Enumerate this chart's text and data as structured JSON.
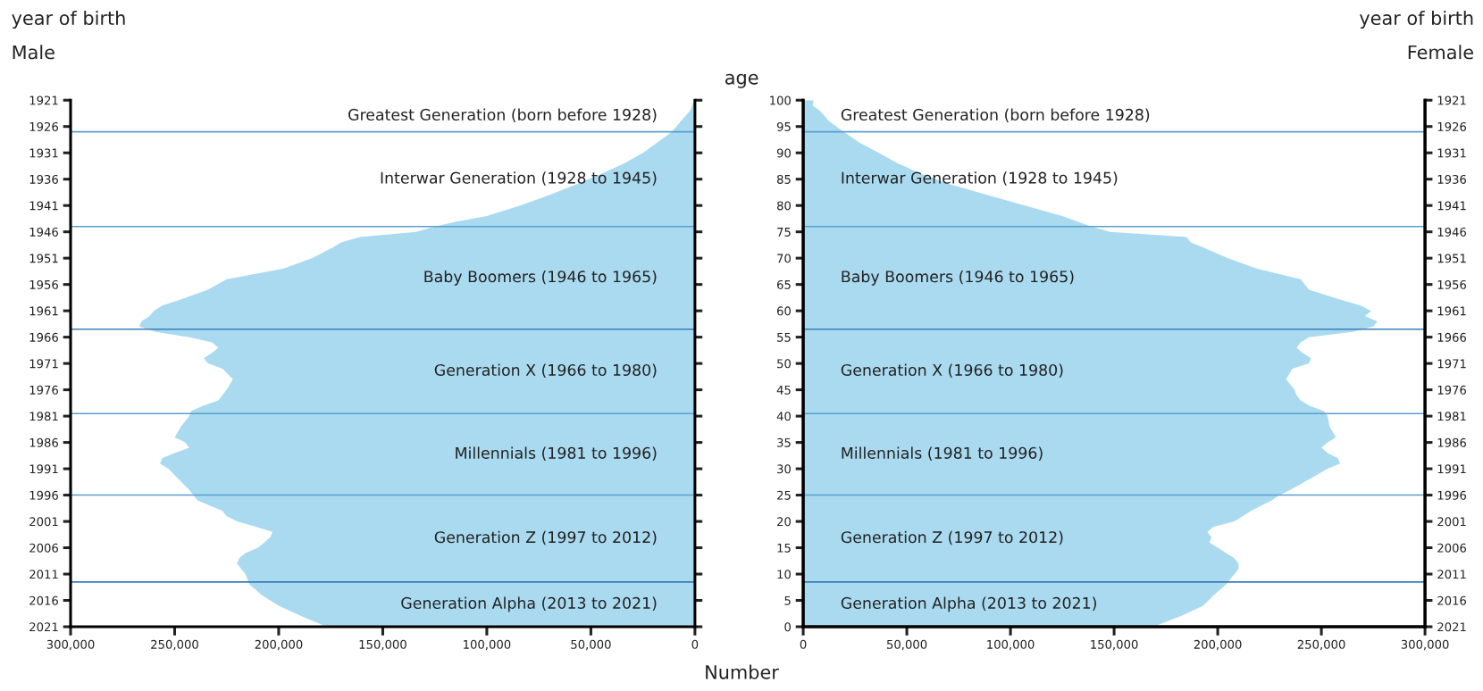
{
  "chart_data": [
    {
      "type": "area",
      "orientation": "horizontal",
      "title": "Male",
      "ylabel": "year of birth",
      "x": [
        2021,
        2019,
        2017,
        2015,
        2013,
        2011,
        2010,
        2009,
        2008,
        2007,
        2006,
        2005,
        2004,
        2003,
        2002,
        2001,
        2000,
        1999,
        1997,
        1996,
        1995,
        1993,
        1991,
        1990,
        1989,
        1988,
        1987,
        1986,
        1985,
        1983,
        1981,
        1980,
        1979,
        1978,
        1977,
        1976,
        1974,
        1972,
        1971,
        1970,
        1969,
        1968,
        1967,
        1966,
        1965,
        1964,
        1963,
        1962,
        1961,
        1960,
        1959,
        1957,
        1955,
        1953,
        1951,
        1949,
        1948,
        1947,
        1946,
        1945,
        1944,
        1943,
        1941,
        1939,
        1937,
        1935,
        1933,
        1931,
        1929,
        1927,
        1925,
        1923,
        1921
      ],
      "series": [
        {
          "color": "#a9daf0",
          "values": [
            177000,
            189000,
            200000,
            208000,
            214000,
            216000,
            218000,
            220000,
            219000,
            216000,
            210000,
            207000,
            204000,
            203000,
            211000,
            220000,
            225000,
            227000,
            239000,
            241000,
            243000,
            248000,
            253000,
            257000,
            256000,
            250000,
            243000,
            245000,
            250000,
            247000,
            243000,
            242000,
            236000,
            229000,
            227000,
            225000,
            222000,
            227000,
            234000,
            236000,
            232000,
            229000,
            232000,
            243000,
            259000,
            267000,
            266000,
            262000,
            260000,
            256000,
            248000,
            234000,
            225000,
            198000,
            184000,
            174000,
            170000,
            161000,
            134000,
            125000,
            114000,
            100000,
            84000,
            70000,
            57000,
            45000,
            34000,
            25000,
            18000,
            11000,
            6800,
            2300,
            500
          ]
        }
      ],
      "xlim": [
        300000,
        0
      ],
      "xticks": [
        {
          "value": 300000,
          "label": "300,000"
        },
        {
          "value": 250000,
          "label": "250,000"
        },
        {
          "value": 200000,
          "label": "200,000"
        },
        {
          "value": 150000,
          "label": "150,000"
        },
        {
          "value": 100000,
          "label": "100,000"
        },
        {
          "value": 50000,
          "label": "50,000"
        },
        0
      ],
      "ylim": [
        2021,
        1921
      ],
      "yticks": [
        1921,
        1926,
        1931,
        1936,
        1941,
        1946,
        1951,
        1956,
        1961,
        1966,
        1971,
        1976,
        1981,
        1986,
        1991,
        1996,
        2001,
        2006,
        2011,
        2016,
        2021
      ],
      "ref_lines": [
        {
          "axis": "y",
          "value": 1927,
          "color": "#5a9fd0"
        },
        {
          "axis": "y",
          "value": 1945,
          "color": "#5a9fd0"
        },
        {
          "axis": "y",
          "value": 1964.5,
          "color": "#3a7fb8"
        },
        {
          "axis": "y",
          "value": 1980.5,
          "color": "#5a9fd0"
        },
        {
          "axis": "y",
          "value": 1996,
          "color": "#5a9fd0"
        },
        {
          "axis": "y",
          "value": 2012.5,
          "color": "#3a7fb8"
        }
      ],
      "annotations": [
        "Greatest Generation (born before 1928)",
        "Interwar Generation (1928 to 1945)",
        "Baby Boomers (1946 to 1965)",
        "Generation X (1966 to 1980)",
        "Millennials (1981 to 1996)",
        "Generation Z (1997 to 2012)",
        "Generation Alpha (2013 to 2021)"
      ]
    },
    {
      "type": "area",
      "orientation": "horizontal",
      "title": "Female",
      "y2label": "year of birth",
      "ylabel": "age",
      "xlabel": "Number",
      "x": [
        0,
        2,
        4,
        6,
        8,
        10,
        11,
        12,
        13,
        14,
        15,
        16,
        17,
        18,
        19,
        20,
        21,
        22,
        24,
        25,
        26,
        28,
        30,
        31,
        32,
        33,
        34,
        35,
        36,
        38,
        40,
        41,
        42,
        43,
        44,
        45,
        47,
        49,
        50,
        51,
        52,
        53,
        54,
        55,
        56,
        57,
        58,
        59,
        60,
        61,
        62,
        64,
        66,
        68,
        70,
        72,
        73,
        74,
        75,
        76,
        78,
        80,
        82,
        84,
        86,
        88,
        90,
        92,
        94,
        96,
        98,
        99,
        100
      ],
      "series": [
        {
          "color": "#a9daf0",
          "values": [
            169000,
            182000,
            193000,
            198000,
            204000,
            208000,
            210000,
            210000,
            208000,
            204000,
            200000,
            196000,
            197000,
            195000,
            198000,
            208000,
            212000,
            216000,
            226000,
            230000,
            235000,
            244000,
            253000,
            259000,
            258000,
            253000,
            250000,
            253000,
            257000,
            254000,
            253000,
            251000,
            244000,
            240000,
            238000,
            237000,
            233000,
            236000,
            244000,
            245000,
            241000,
            238000,
            240000,
            244000,
            265000,
            275000,
            277000,
            271000,
            274000,
            269000,
            260000,
            244000,
            240000,
            219000,
            205000,
            193000,
            187000,
            185000,
            148000,
            139000,
            125000,
            107000,
            89000,
            71000,
            57000,
            45600,
            36500,
            27000,
            19400,
            12500,
            8000,
            4600,
            5000
          ]
        }
      ],
      "xlim": [
        0,
        300000
      ],
      "xticks": [
        0,
        {
          "value": 50000,
          "label": "50,000"
        },
        {
          "value": 100000,
          "label": "100,000"
        },
        {
          "value": 150000,
          "label": "150,000"
        },
        {
          "value": 200000,
          "label": "200,000"
        },
        {
          "value": 250000,
          "label": "250,000"
        },
        {
          "value": 300000,
          "label": "300,000"
        }
      ],
      "ylim": [
        0,
        100
      ],
      "yticks": [
        0,
        5,
        10,
        15,
        20,
        25,
        30,
        35,
        40,
        45,
        50,
        55,
        60,
        65,
        70,
        75,
        80,
        85,
        90,
        95,
        100
      ],
      "y2lim": [
        2021,
        1921
      ],
      "y2ticks": [
        1921,
        1926,
        1931,
        1936,
        1941,
        1946,
        1951,
        1956,
        1961,
        1966,
        1971,
        1976,
        1981,
        1986,
        1991,
        1996,
        2001,
        2006,
        2011,
        2016,
        2021
      ],
      "ref_lines": [
        {
          "axis": "y",
          "value": 94,
          "color": "#5a9fd0"
        },
        {
          "axis": "y",
          "value": 76,
          "color": "#5a9fd0"
        },
        {
          "axis": "y",
          "value": 56.5,
          "color": "#3a7fb8"
        },
        {
          "axis": "y",
          "value": 40.5,
          "color": "#5a9fd0"
        },
        {
          "axis": "y",
          "value": 25,
          "color": "#5a9fd0"
        },
        {
          "axis": "y",
          "value": 8.5,
          "color": "#3a7fb8"
        }
      ],
      "annotations": [
        "Greatest Generation (born before 1928)",
        "Interwar Generation (1928 to 1945)",
        "Baby Boomers (1946 to 1965)",
        "Generation X (1966 to 1980)",
        "Millennials (1981 to 1996)",
        "Generation Z (1997 to 2012)",
        "Generation Alpha (2013 to 2021)"
      ]
    }
  ]
}
